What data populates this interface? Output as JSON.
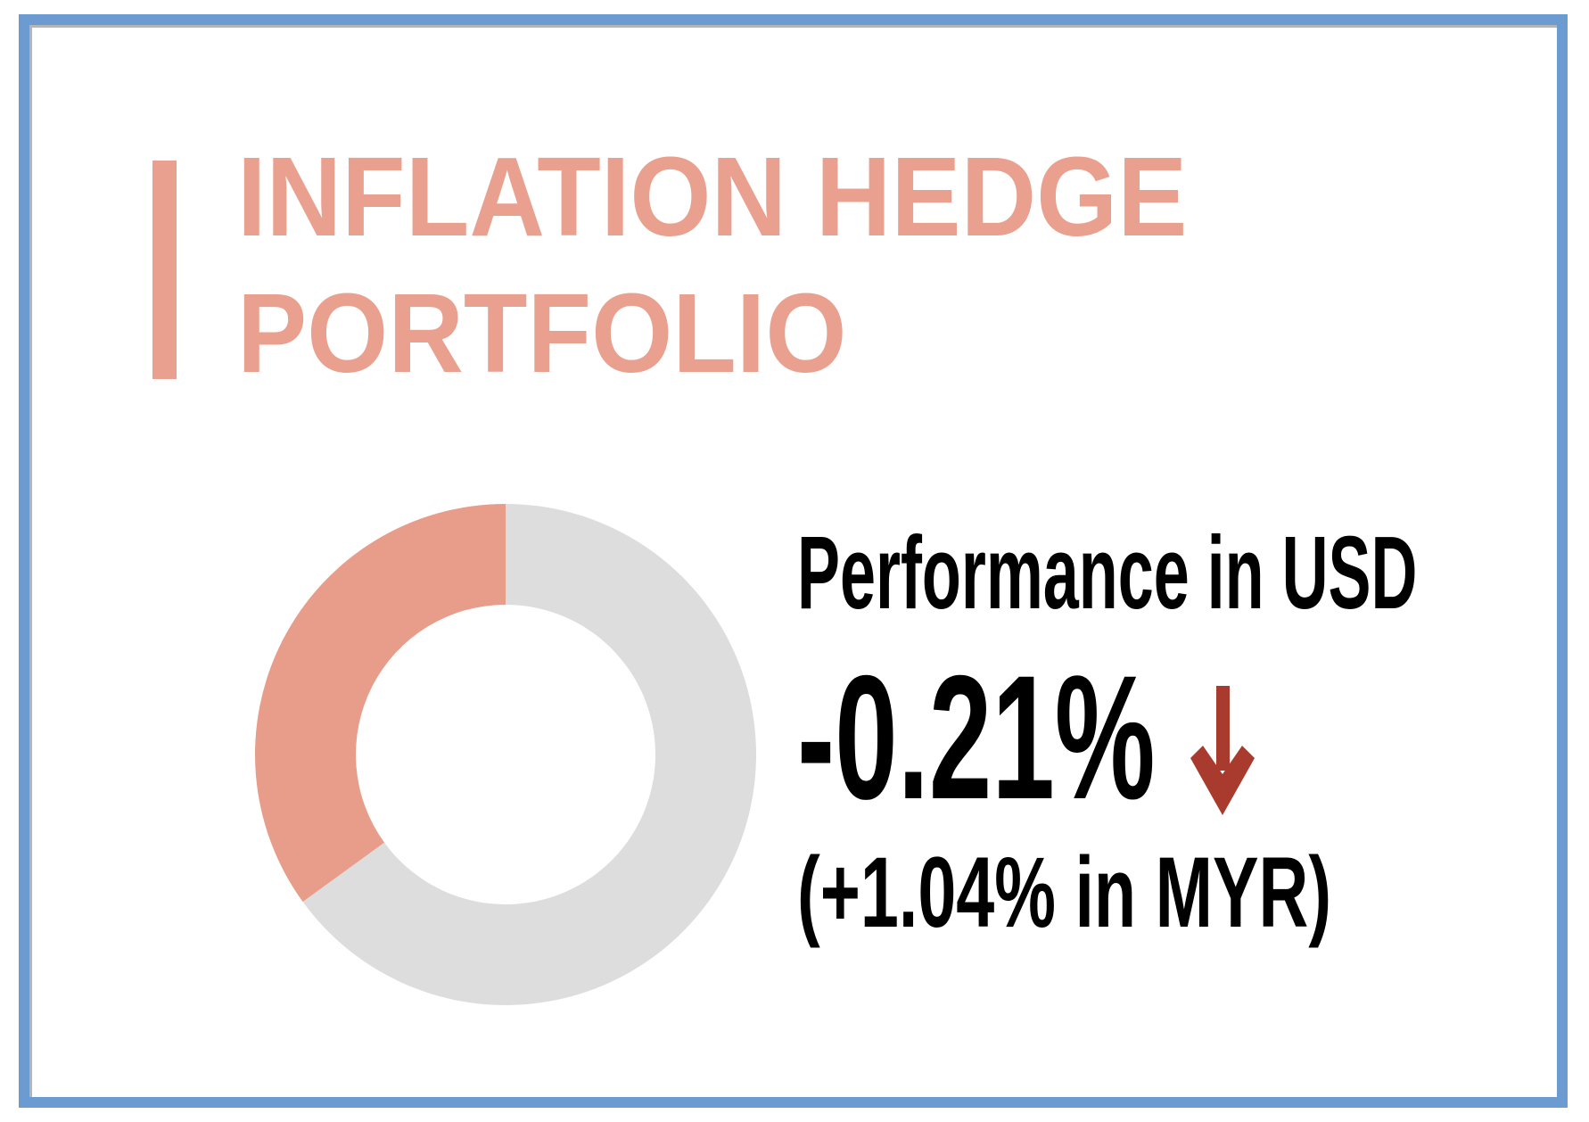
{
  "title": {
    "line1": "INFLATION HEDGE",
    "line2": "PORTFOLIO",
    "color": "#e9a08e"
  },
  "performance": {
    "label": "Performance in USD",
    "value": "-0.21%",
    "direction_icon": "arrow-down-icon",
    "direction_color": "#a83a2e",
    "secondary": "(+1.04% in MYR)"
  },
  "frame_color": "#6b9bd1",
  "chart_data": {
    "type": "pie",
    "style": "donut",
    "slices": [
      {
        "value": 35,
        "color": "#e89d8b"
      },
      {
        "value": 65,
        "color": "#dddddd"
      }
    ],
    "start": "top",
    "direction": "counterclockwise-highlighted-first"
  }
}
